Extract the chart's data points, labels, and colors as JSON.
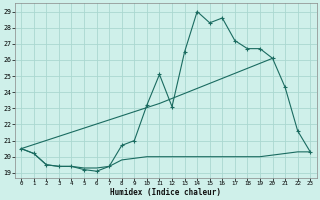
{
  "xlabel": "Humidex (Indice chaleur)",
  "xlim": [
    -0.5,
    23.5
  ],
  "ylim": [
    18.7,
    29.5
  ],
  "xticks": [
    0,
    1,
    2,
    3,
    4,
    5,
    6,
    7,
    8,
    9,
    10,
    11,
    12,
    13,
    14,
    15,
    16,
    17,
    18,
    19,
    20,
    21,
    22,
    23
  ],
  "yticks": [
    19,
    20,
    21,
    22,
    23,
    24,
    25,
    26,
    27,
    28,
    29
  ],
  "bg_color": "#cff0ea",
  "grid_color": "#aad8d0",
  "line_color": "#1a6b60",
  "line1_x": [
    0,
    1,
    2,
    3,
    4,
    5,
    6,
    7,
    8,
    9,
    10,
    11,
    12,
    13,
    14,
    15,
    16,
    17,
    18,
    19,
    20,
    21,
    22,
    23
  ],
  "line1_y": [
    20.5,
    20.2,
    19.5,
    19.4,
    19.4,
    19.2,
    19.1,
    19.4,
    20.7,
    21.0,
    23.2,
    25.1,
    23.1,
    26.5,
    29.0,
    28.3,
    28.6,
    27.2,
    26.7,
    26.7,
    26.1,
    24.3,
    21.6,
    20.3
  ],
  "line2_x": [
    0,
    1,
    2,
    3,
    4,
    5,
    6,
    7,
    8,
    9,
    10,
    11,
    12,
    13,
    14,
    15,
    16,
    17,
    18,
    19,
    20,
    21,
    22,
    23
  ],
  "line2_y": [
    20.5,
    20.2,
    19.5,
    19.4,
    19.4,
    19.3,
    19.3,
    19.4,
    19.8,
    19.9,
    20.0,
    20.0,
    20.0,
    20.0,
    20.0,
    20.0,
    20.0,
    20.0,
    20.0,
    20.0,
    20.1,
    20.2,
    20.3,
    20.3
  ],
  "line3_x": [
    0,
    11,
    20
  ],
  "line3_y": [
    20.5,
    23.3,
    26.1
  ]
}
